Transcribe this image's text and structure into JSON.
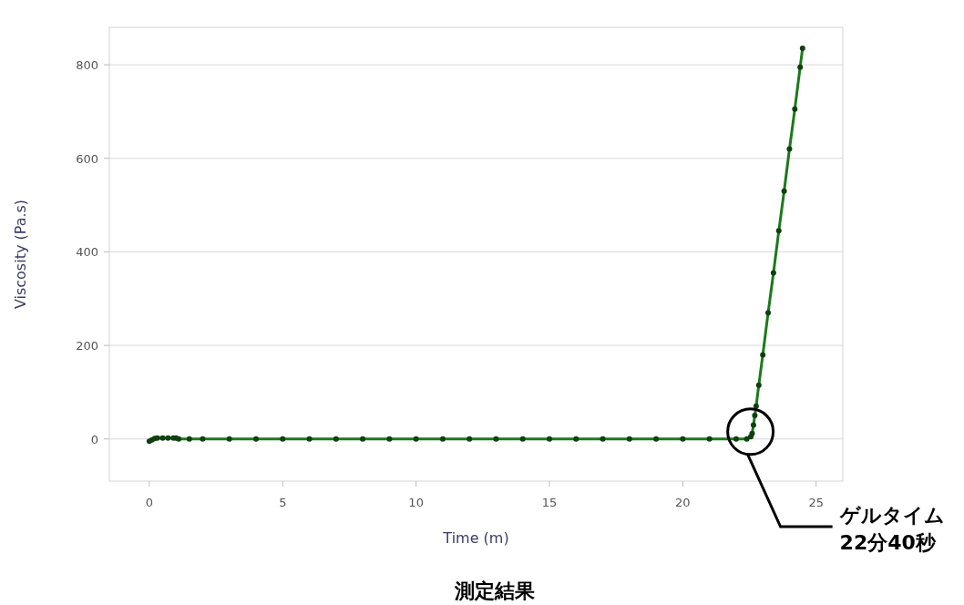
{
  "chart_data": {
    "type": "line",
    "title": "測定結果",
    "xlabel": "Time (m)",
    "ylabel": "Viscosity (Pa.s)",
    "xlim": [
      -1.5,
      26
    ],
    "xticks": [
      0,
      5,
      10,
      15,
      20,
      25
    ],
    "ylim": [
      -90,
      880
    ],
    "yticks": [
      0,
      200,
      400,
      600,
      800
    ],
    "grid": "y",
    "marker": "circle",
    "line_style": "solid",
    "series": [
      {
        "color": "#1a7a1a",
        "x": [
          0,
          0.1,
          0.2,
          0.3,
          0.5,
          0.7,
          0.9,
          1.0,
          1.1,
          1.5,
          2,
          3,
          4,
          5,
          6,
          7,
          8,
          9,
          10,
          11,
          12,
          13,
          14,
          15,
          16,
          17,
          18,
          19,
          20,
          21,
          22,
          22.4,
          22.55,
          22.6,
          22.65,
          22.7,
          22.75,
          22.85,
          23.0,
          23.2,
          23.4,
          23.6,
          23.8,
          24.0,
          24.2,
          24.4,
          24.49
        ],
        "values": [
          -5,
          -2,
          1,
          2,
          2,
          2,
          2,
          2,
          0,
          0,
          0,
          0,
          0,
          0,
          0,
          0,
          0,
          0,
          0,
          0,
          0,
          0,
          0,
          0,
          0,
          0,
          0,
          0,
          0,
          0,
          0,
          0,
          5,
          12,
          30,
          50,
          70,
          115,
          180,
          270,
          355,
          445,
          530,
          620,
          705,
          795,
          835
        ]
      }
    ],
    "annotations": [
      "ゲルタイム\n22分40秒"
    ]
  }
}
